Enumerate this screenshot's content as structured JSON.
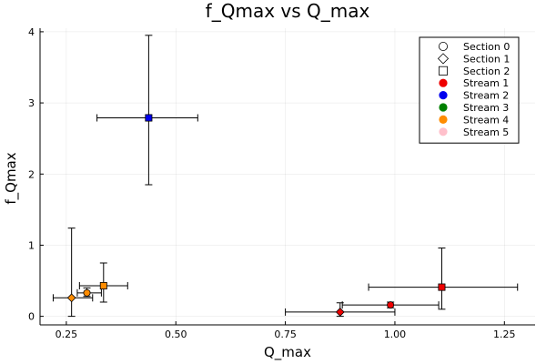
{
  "chart_data": {
    "type": "scatter",
    "title": "f_Qmax vs Q_max",
    "xlabel": "Q_max",
    "ylabel": "f_Qmax",
    "xlim": [
      0.19,
      1.32
    ],
    "ylim": [
      -0.12,
      4.05
    ],
    "xticks": [
      0.25,
      0.5,
      0.75,
      1.0,
      1.25
    ],
    "xtick_labels": [
      "0.25",
      "0.50",
      "0.75",
      "1.00",
      "1.25"
    ],
    "yticks": [
      0,
      1,
      2,
      3,
      4
    ],
    "ytick_labels": [
      "0",
      "1",
      "2",
      "3",
      "4"
    ],
    "grid": true,
    "legend_position": "top-right",
    "legend": {
      "shapes": [
        {
          "label": "Section 0",
          "shape": "circle"
        },
        {
          "label": "Section 1",
          "shape": "diamond"
        },
        {
          "label": "Section 2",
          "shape": "square"
        }
      ],
      "colors": [
        {
          "label": "Stream 1",
          "color": "#ee0000"
        },
        {
          "label": "Stream 2",
          "color": "#0000ee"
        },
        {
          "label": "Stream 3",
          "color": "#008000"
        },
        {
          "label": "Stream 4",
          "color": "#ff8c00"
        },
        {
          "label": "Stream 5",
          "color": "#ffc0cb"
        }
      ]
    },
    "points": [
      {
        "stream": 1,
        "section": 1,
        "color": "#ee0000",
        "shape": "diamond",
        "x": 0.875,
        "y": 0.06,
        "xerr": [
          0.75,
          1.0
        ],
        "yerr": [
          0.0,
          0.19
        ]
      },
      {
        "stream": 1,
        "section": 0,
        "color": "#ee0000",
        "shape": "circle",
        "x": 0.99,
        "y": 0.16,
        "xerr": [
          0.88,
          1.1
        ],
        "yerr": [
          0.12,
          0.2
        ]
      },
      {
        "stream": 1,
        "section": 2,
        "color": "#ee0000",
        "shape": "square",
        "x": 1.107,
        "y": 0.41,
        "xerr": [
          0.94,
          1.28
        ],
        "yerr": [
          0.1,
          0.96
        ]
      },
      {
        "stream": 2,
        "section": 2,
        "color": "#0000ee",
        "shape": "square",
        "x": 0.438,
        "y": 2.79,
        "xerr": [
          0.32,
          0.55
        ],
        "yerr": [
          1.85,
          3.95
        ]
      },
      {
        "stream": 4,
        "section": 1,
        "color": "#ff8c00",
        "shape": "diamond",
        "x": 0.262,
        "y": 0.26,
        "xerr": [
          0.22,
          0.31
        ],
        "yerr": [
          0.0,
          1.24
        ]
      },
      {
        "stream": 4,
        "section": 0,
        "color": "#ff8c00",
        "shape": "circle",
        "x": 0.297,
        "y": 0.33,
        "xerr": [
          0.275,
          0.33
        ],
        "yerr": [
          0.28,
          0.4
        ]
      },
      {
        "stream": 4,
        "section": 2,
        "color": "#ff8c00",
        "shape": "square",
        "x": 0.335,
        "y": 0.43,
        "xerr": [
          0.28,
          0.39
        ],
        "yerr": [
          0.2,
          0.75
        ]
      }
    ]
  }
}
